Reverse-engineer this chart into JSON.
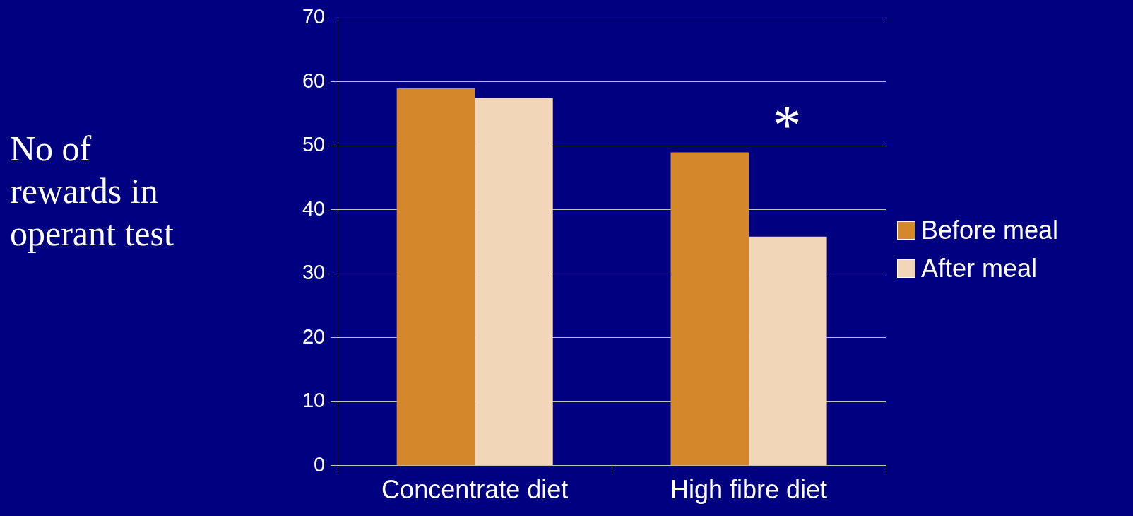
{
  "chart_data": {
    "type": "bar",
    "ylabel": "No of rewards in operant test",
    "categories": [
      "Concentrate diet",
      "High fibre diet"
    ],
    "series": [
      {
        "name": "Before meal",
        "color": "#d5872b",
        "values": [
          59,
          49
        ]
      },
      {
        "name": "After meal",
        "color": "#f1d6b8",
        "values": [
          57.5,
          35.8
        ]
      }
    ],
    "ylim": [
      0,
      70
    ],
    "yticks": [
      0,
      10,
      20,
      30,
      40,
      50,
      60,
      70
    ],
    "grid": "y",
    "legend": "right",
    "annotations": [
      "*"
    ]
  }
}
